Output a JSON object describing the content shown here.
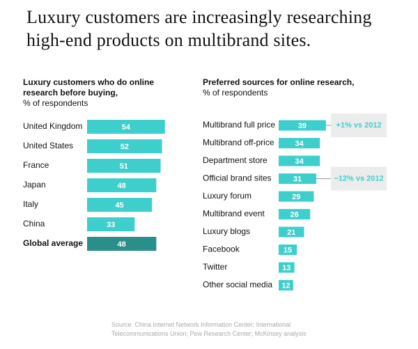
{
  "title": "Luxury customers are increasingly researching\nhigh-end products on multibrand sites.",
  "source": "Source: China Internet Network Information Center; International\nTelecommunications Union; Pew Research Center; McKinsey analysis",
  "chart_data": [
    {
      "type": "bar",
      "orientation": "horizontal",
      "title": "Luxury customers who do online\nresearch before buying,",
      "subtitle": "% of respondents",
      "categories": [
        "United Kingdom",
        "United States",
        "France",
        "Japan",
        "Italy",
        "China",
        "Global average"
      ],
      "values": [
        54,
        52,
        51,
        48,
        45,
        33,
        48
      ],
      "color": "#3ecfcc",
      "highlight": {
        "category": "Global average",
        "color": "#2a8e8b"
      }
    },
    {
      "type": "bar",
      "orientation": "horizontal",
      "title": "Preferred sources for online research,",
      "subtitle": "% of respondents",
      "categories": [
        "Multibrand full price",
        "Multibrand off-price",
        "Department store",
        "Official brand sites",
        "Luxury forum",
        "Multibrand event",
        "Luxury blogs",
        "Facebook",
        "Twitter",
        "Other social media"
      ],
      "values": [
        39,
        34,
        34,
        31,
        29,
        26,
        21,
        15,
        13,
        12
      ],
      "color": "#3ecfcc",
      "annotations": [
        {
          "category": "Multibrand full price",
          "text": "+1% vs 2012"
        },
        {
          "category": "Official brand sites",
          "text": "−12% vs 2012"
        }
      ]
    }
  ]
}
